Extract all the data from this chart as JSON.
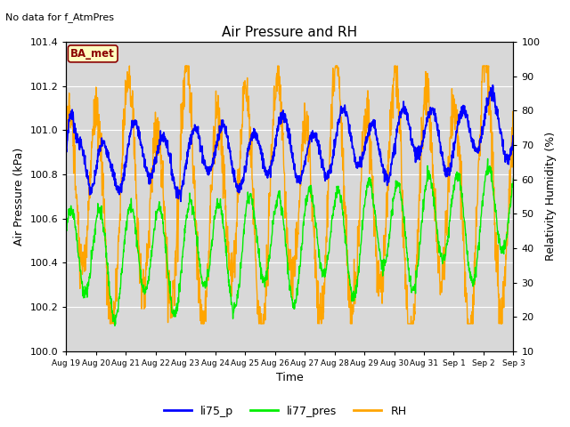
{
  "title": "Air Pressure and RH",
  "top_left_text": "No data for f_AtmPres",
  "annotation_box": "BA_met",
  "xlabel": "Time",
  "ylabel_left": "Air Pressure (kPa)",
  "ylabel_right": "Relativity Humidity (%)",
  "ylim_left": [
    100.0,
    101.4
  ],
  "ylim_right": [
    10,
    100
  ],
  "yticks_left": [
    100.0,
    100.2,
    100.4,
    100.6,
    100.8,
    101.0,
    101.2,
    101.4
  ],
  "yticks_right": [
    10,
    20,
    30,
    40,
    50,
    60,
    70,
    80,
    90,
    100
  ],
  "xtick_labels": [
    "Aug 19",
    "Aug 20",
    "Aug 21",
    "Aug 22",
    "Aug 23",
    "Aug 24",
    "Aug 25",
    "Aug 26",
    "Aug 27",
    "Aug 28",
    "Aug 29",
    "Aug 30",
    "Aug 31",
    "Sep 1",
    "Sep 2",
    "Sep 3"
  ],
  "color_blue": "#0000FF",
  "color_green": "#00EE00",
  "color_orange": "#FFA500",
  "legend_labels": [
    "li75_p",
    "li77_pres",
    "RH"
  ],
  "fig_bg_color": "#FFFFFF",
  "plot_bg_color": "#D8D8D8",
  "n_points": 1500,
  "seed": 7
}
